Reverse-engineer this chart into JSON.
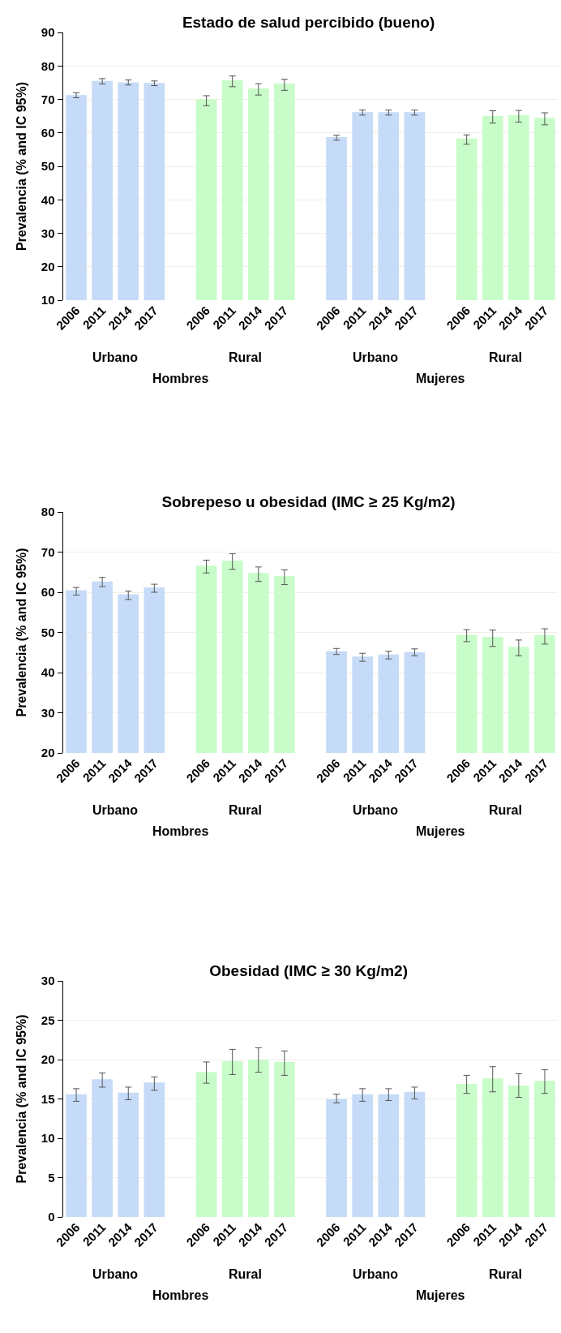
{
  "chart_data": [
    {
      "type": "bar",
      "title": "Estado de salud percibido (bueno)",
      "ylabel": "Prevalencia (% and IC 95%)",
      "categories": [
        "2006",
        "2011",
        "2014",
        "2017",
        null,
        "2006",
        "2011",
        "2014",
        "2017",
        null,
        "2006",
        "2011",
        "2014",
        "2017",
        null,
        "2006",
        "2011",
        "2014",
        "2017"
      ],
      "values": [
        71.3,
        75.5,
        75.1,
        74.9,
        null,
        70.0,
        75.7,
        73.3,
        74.7,
        null,
        58.7,
        66.2,
        66.2,
        66.2,
        null,
        58.3,
        65.1,
        65.3,
        64.5
      ],
      "errors": [
        [
          70.5,
          72.0
        ],
        [
          74.6,
          76.2
        ],
        [
          74.3,
          75.8
        ],
        [
          74.1,
          75.5
        ],
        null,
        [
          68.1,
          71.1
        ],
        [
          73.8,
          77.0
        ],
        [
          71.3,
          74.7
        ],
        [
          72.7,
          76.0
        ],
        null,
        [
          57.8,
          59.3
        ],
        [
          65.3,
          66.8
        ],
        [
          65.3,
          66.8
        ],
        [
          65.3,
          66.8
        ],
        null,
        [
          56.6,
          59.4
        ],
        [
          62.9,
          66.6
        ],
        [
          63.2,
          66.7
        ],
        [
          62.4,
          66.0
        ]
      ],
      "colors": [
        "#c6dbf7",
        "#c6dbf7",
        "#c6dbf7",
        "#c6dbf7",
        null,
        "#c8fcc8",
        "#c8fcc8",
        "#c8fcc8",
        "#c8fcc8",
        null,
        "#c6dbf7",
        "#c6dbf7",
        "#c6dbf7",
        "#c6dbf7",
        null,
        "#c8fcc8",
        "#c8fcc8",
        "#c8fcc8",
        "#c8fcc8"
      ],
      "ylim": [
        10,
        90
      ],
      "yticks": [
        10,
        20,
        30,
        40,
        50,
        60,
        70,
        80,
        90
      ],
      "grid": "y",
      "annotations": [
        "Urbano",
        "Rural",
        "Urbano",
        "Rural",
        "Hombres",
        "Mujeres"
      ]
    },
    {
      "type": "bar",
      "title": "Sobrepeso u obesidad (IMC ≥ 25 Kg/m2)",
      "ylabel": "Prevalencia (% and IC 95%)",
      "categories": [
        "2006",
        "2011",
        "2014",
        "2017",
        null,
        "2006",
        "2011",
        "2014",
        "2017",
        null,
        "2006",
        "2011",
        "2014",
        "2017",
        null,
        "2006",
        "2011",
        "2014",
        "2017"
      ],
      "values": [
        60.5,
        62.7,
        59.5,
        61.2,
        null,
        66.6,
        67.9,
        64.8,
        64.0,
        null,
        45.3,
        44.0,
        44.5,
        45.1,
        null,
        49.4,
        48.9,
        46.4,
        49.3
      ],
      "errors": [
        [
          59.3,
          61.2
        ],
        [
          61.4,
          63.7
        ],
        [
          58.2,
          60.3
        ],
        [
          60.0,
          62.0
        ],
        null,
        [
          64.8,
          68.0
        ],
        [
          65.7,
          69.6
        ],
        [
          62.7,
          66.3
        ],
        [
          61.9,
          65.6
        ],
        null,
        [
          44.5,
          46.0
        ],
        [
          42.8,
          44.8
        ],
        [
          43.4,
          45.3
        ],
        [
          44.2,
          45.9
        ],
        null,
        [
          47.7,
          50.7
        ],
        [
          46.5,
          50.6
        ],
        [
          44.2,
          48.1
        ],
        [
          47.1,
          50.9
        ]
      ],
      "colors": [
        "#c6dbf7",
        "#c6dbf7",
        "#c6dbf7",
        "#c6dbf7",
        null,
        "#c8fcc8",
        "#c8fcc8",
        "#c8fcc8",
        "#c8fcc8",
        null,
        "#c6dbf7",
        "#c6dbf7",
        "#c6dbf7",
        "#c6dbf7",
        null,
        "#c8fcc8",
        "#c8fcc8",
        "#c8fcc8",
        "#c8fcc8"
      ],
      "ylim": [
        20,
        80
      ],
      "yticks": [
        20,
        30,
        40,
        50,
        60,
        70,
        80
      ],
      "grid": "y",
      "annotations": [
        "Urbano",
        "Rural",
        "Urbano",
        "Rural",
        "Hombres",
        "Mujeres"
      ]
    },
    {
      "type": "bar",
      "title": "Obesidad (IMC ≥ 30 Kg/m2)",
      "ylabel": "Prevalencia (% and IC 95%)",
      "categories": [
        "2006",
        "2011",
        "2014",
        "2017",
        null,
        "2006",
        "2011",
        "2014",
        "2017",
        null,
        "2006",
        "2011",
        "2014",
        "2017",
        null,
        "2006",
        "2011",
        "2014",
        "2017"
      ],
      "values": [
        15.6,
        17.5,
        15.8,
        17.1,
        null,
        18.4,
        19.8,
        20.0,
        19.7,
        null,
        15.0,
        15.6,
        15.6,
        15.9,
        null,
        16.9,
        17.6,
        16.7,
        17.3
      ],
      "errors": [
        [
          14.7,
          16.3
        ],
        [
          16.5,
          18.3
        ],
        [
          14.9,
          16.5
        ],
        [
          16.1,
          17.8
        ],
        null,
        [
          17.0,
          19.7
        ],
        [
          18.1,
          21.3
        ],
        [
          18.4,
          21.5
        ],
        [
          18.0,
          21.1
        ],
        null,
        [
          14.5,
          15.6
        ],
        [
          14.7,
          16.3
        ],
        [
          14.8,
          16.3
        ],
        [
          15.0,
          16.5
        ],
        null,
        [
          15.7,
          18.0
        ],
        [
          15.9,
          19.1
        ],
        [
          15.2,
          18.2
        ],
        [
          15.7,
          18.7
        ]
      ],
      "colors": [
        "#c6dbf7",
        "#c6dbf7",
        "#c6dbf7",
        "#c6dbf7",
        null,
        "#c8fcc8",
        "#c8fcc8",
        "#c8fcc8",
        "#c8fcc8",
        null,
        "#c6dbf7",
        "#c6dbf7",
        "#c6dbf7",
        "#c6dbf7",
        null,
        "#c8fcc8",
        "#c8fcc8",
        "#c8fcc8",
        "#c8fcc8"
      ],
      "ylim": [
        0,
        30
      ],
      "yticks": [
        0,
        5,
        10,
        15,
        20,
        25,
        30
      ],
      "grid": "y",
      "annotations": [
        "Urbano",
        "Rural",
        "Urbano",
        "Rural",
        "Hombres",
        "Mujeres"
      ]
    }
  ]
}
